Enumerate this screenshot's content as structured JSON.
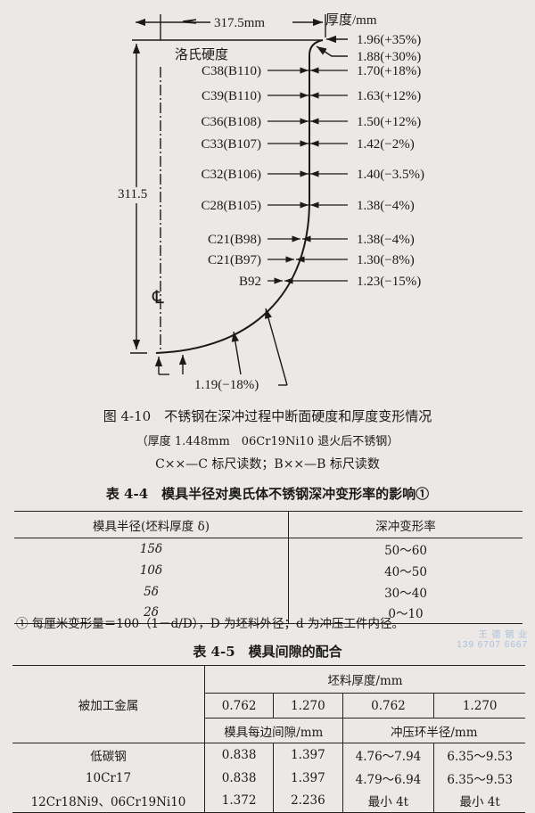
{
  "figure": {
    "width_label": "317.5mm",
    "height_label": "311.5",
    "thickness_header": "厚度/mm",
    "hardness_header": "洛氏硬度",
    "centerline_symbol": "℄",
    "hardness": [
      "C38(B110)",
      "C39(B110)",
      "C36(B108)",
      "C33(B107)",
      "C32(B106)",
      "C28(B105)",
      "C21(B98)",
      "C21(B97)",
      "B92"
    ],
    "thickness": [
      "1.96(+35%)",
      "1.88(+30%)",
      "1.70(+18%)",
      "1.63(+12%)",
      "1.50(+12%)",
      "1.42(−2%)",
      "1.40(−3.5%)",
      "1.38(−4%)",
      "1.38(−4%)",
      "1.30(−8%)",
      "1.23(−15%)"
    ],
    "bottom_thickness": "1.19(−18%)",
    "caption": "图 4-10　不锈钢在深冲过程中断面硬度和厚度变形情况",
    "subcaption": "（厚度 1.448mm　06Cr19Ni10 退火后不锈钢）",
    "legend": "C××—C 标尺读数；B××—B 标尺读数"
  },
  "table44": {
    "title": "表 4-4　模具半径对奥氏体不锈钢深冲变形率的影响①",
    "headers": [
      "模具半径(坯料厚度 δ)",
      "深冲变形率"
    ],
    "rows": [
      [
        "15δ",
        "50～60"
      ],
      [
        "10δ",
        "40～50"
      ],
      [
        "5δ",
        "30～40"
      ],
      [
        "2δ",
        "0～10"
      ]
    ],
    "footnote": "① 每厘米变形量＝100（1－d/D），D 为坯料外径；d 为冲压工件内径。"
  },
  "table45": {
    "title": "表 4-5　模具间隙的配合",
    "metal_header": "被加工金属",
    "thickness_header": "坯料厚度/mm",
    "thickness_values": [
      "0.762",
      "1.270",
      "0.762",
      "1.270"
    ],
    "gap_header": "模具每边间隙/mm",
    "radius_header": "冲压环半径/mm",
    "rows": [
      [
        "低碳钢",
        "0.838",
        "1.397",
        "4.76～7.94",
        "6.35～9.53"
      ],
      [
        "10Cr17",
        "0.838",
        "1.397",
        "4.79～6.94",
        "6.35～9.53"
      ],
      [
        "12Cr18Ni9、06Cr19Ni10",
        "1.372",
        "2.236",
        "最小 4t",
        "最小 4t"
      ]
    ]
  },
  "watermark": {
    "line1": "王 德 钢 业",
    "line2": "139 6707 6667"
  }
}
